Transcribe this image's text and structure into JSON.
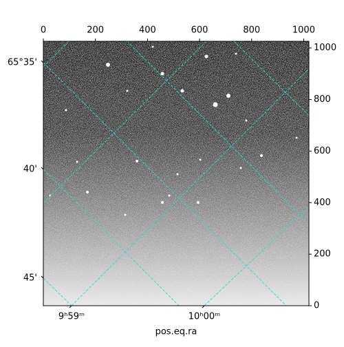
{
  "chart_data": {
    "type": "image",
    "xlabel": "pos.eq.ra",
    "xlim": [
      0,
      1020
    ],
    "xticks": [
      0,
      200,
      400,
      600,
      800,
      1000
    ],
    "ylim": [
      0,
      1026
    ],
    "yticks": [
      0,
      200,
      400,
      600,
      800,
      1000
    ],
    "dec_ticks": [
      "65°35'",
      "40'",
      "45'"
    ],
    "ra_ticks": [
      "9ʰ59ᵐ",
      "10ʰ00ᵐ"
    ]
  }
}
